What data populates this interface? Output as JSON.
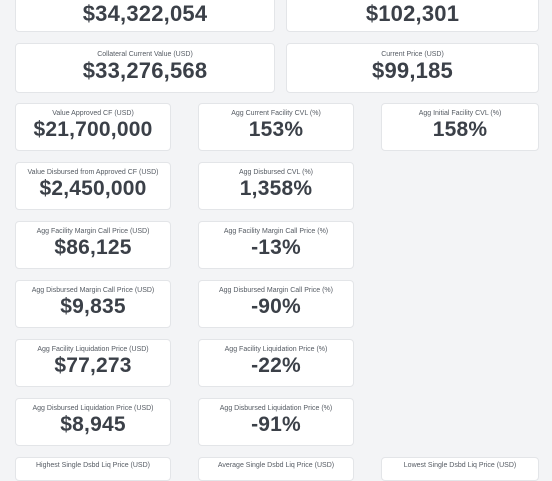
{
  "top": {
    "cutoff_value_left": "$34,322,054",
    "cutoff_value_right": "$102,301"
  },
  "row2": {
    "collateral": {
      "label": "Collateral Current Value (USD)",
      "value": "$33,276,568"
    },
    "current_price": {
      "label": "Current Price (USD)",
      "value": "$99,185"
    }
  },
  "metrics": {
    "value_approved_cf": {
      "label": "Value Approved CF (USD)",
      "value": "$21,700,000"
    },
    "agg_current_facility_cvl": {
      "label": "Agg Current Facility CVL (%)",
      "value": "153%"
    },
    "agg_initial_facility_cvl": {
      "label": "Agg Initial Facility CVL (%)",
      "value": "158%"
    },
    "value_disbursed": {
      "label": "Value Disbursed from Approved CF (USD)",
      "value": "$2,450,000"
    },
    "agg_disbursed_cvl": {
      "label": "Agg Disbursed CVL (%)",
      "value": "1,358%"
    },
    "agg_facility_margin_call_price_usd": {
      "label": "Agg Facility Margin Call Price (USD)",
      "value": "$86,125"
    },
    "agg_facility_margin_call_price_pct": {
      "label": "Agg Facility Margin Call Price (%)",
      "value": "-13%"
    },
    "agg_disbursed_margin_call_price_usd": {
      "label": "Agg Disbursed Margin Call Price (USD)",
      "value": "$9,835"
    },
    "agg_disbursed_margin_call_price_pct": {
      "label": "Agg Disbursed Margin Call Price (%)",
      "value": "-90%"
    },
    "agg_facility_liquidation_price_usd": {
      "label": "Agg Facility Liquidation Price (USD)",
      "value": "$77,273"
    },
    "agg_facility_liquidation_price_pct": {
      "label": "Agg Facility Liquidation Price (%)",
      "value": "-22%"
    },
    "agg_disbursed_liquidation_price_usd": {
      "label": "Agg Disbursed Liquidation Price (USD)",
      "value": "$8,945"
    },
    "agg_disbursed_liquidation_price_pct": {
      "label": "Agg Disbursed Liquidation Price (%)",
      "value": "-91%"
    },
    "highest_single_dsbd_liq_price": {
      "label": "Highest Single Dsbd Liq Price (USD)"
    },
    "average_single_dsbd_liq_price": {
      "label": "Average Single Dsbd Liq Price (USD)"
    },
    "lowest_single_dsbd_liq_price": {
      "label": "Lowest Single Dsbd Liq Price (USD)"
    }
  }
}
